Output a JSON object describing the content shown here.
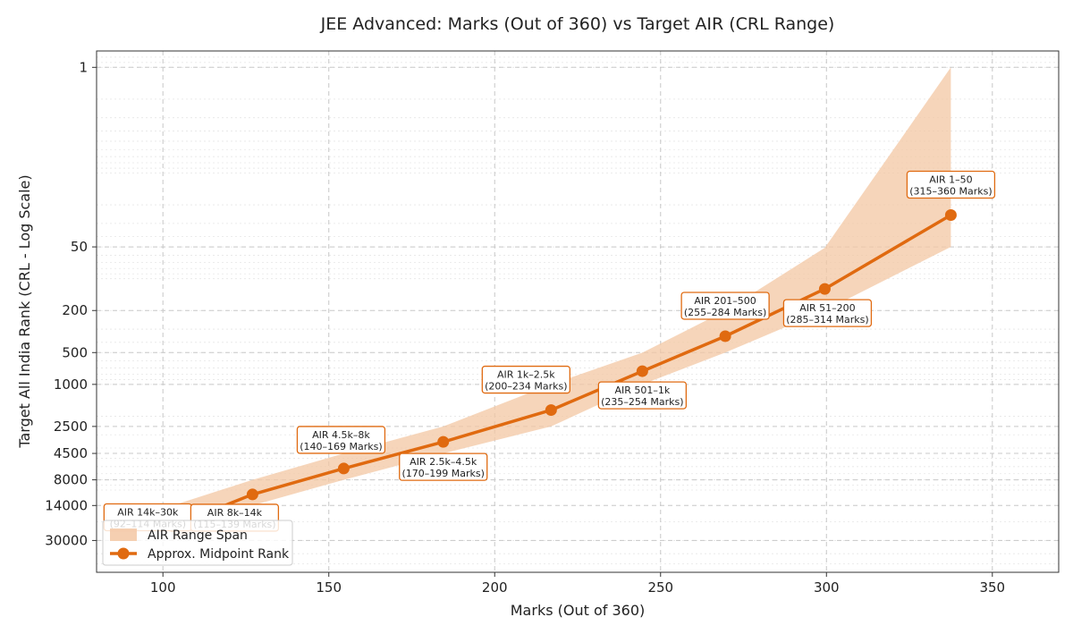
{
  "chart_data": {
    "type": "line",
    "title": "JEE Advanced: Marks (Out of 360) vs Target AIR (CRL Range)",
    "xlabel": "Marks (Out of 360)",
    "ylabel": "Target All India Rank (CRL - Log Scale)",
    "xlim": [
      80,
      370
    ],
    "ylim_log": [
      60000,
      0.7
    ],
    "y_scale": "log",
    "y_inverted": true,
    "grid": true,
    "legend_position": "bottom-left",
    "x_ticks": [
      100,
      150,
      200,
      250,
      300,
      350
    ],
    "y_ticks": [
      1,
      50,
      200,
      500,
      1000,
      2500,
      4500,
      8000,
      14000,
      30000
    ],
    "colors": {
      "line": "#e06a10",
      "band": "#f3c7a3",
      "box_edge": "#e06a10"
    },
    "series": [
      {
        "name": "Approx. Midpoint Rank",
        "x": [
          103,
          127,
          154.5,
          184.5,
          217,
          244.5,
          269.5,
          299.5,
          337.5
        ],
        "y": [
          22000,
          11000,
          6250,
          3500,
          1750,
          750,
          350,
          125,
          25
        ]
      }
    ],
    "band": {
      "name": "AIR Range Span",
      "x": [
        103,
        127,
        154.5,
        184.5,
        217,
        244.5,
        269.5,
        299.5,
        337.5
      ],
      "low": [
        14000,
        8000,
        4500,
        2500,
        1000,
        501,
        201,
        51,
        1
      ],
      "high": [
        30000,
        14000,
        8000,
        4500,
        2500,
        1000,
        500,
        200,
        50
      ]
    },
    "annotations": [
      {
        "line1": "AIR 14k–30k",
        "line2": "(92–114 Marks)"
      },
      {
        "line1": "AIR 8k–14k",
        "line2": "(115–139 Marks)"
      },
      {
        "line1": "AIR 4.5k–8k",
        "line2": "(140–169 Marks)"
      },
      {
        "line1": "AIR 2.5k–4.5k",
        "line2": "(170–199 Marks)"
      },
      {
        "line1": "AIR 1k–2.5k",
        "line2": "(200–234 Marks)"
      },
      {
        "line1": "AIR 501–1k",
        "line2": "(235–254 Marks)"
      },
      {
        "line1": "AIR 201–500",
        "line2": "(255–284 Marks)"
      },
      {
        "line1": "AIR 51–200",
        "line2": "(285–314 Marks)"
      },
      {
        "line1": "AIR 1–50",
        "line2": "(315–360 Marks)"
      }
    ],
    "legend": [
      "AIR Range Span",
      "Approx. Midpoint Rank"
    ]
  }
}
